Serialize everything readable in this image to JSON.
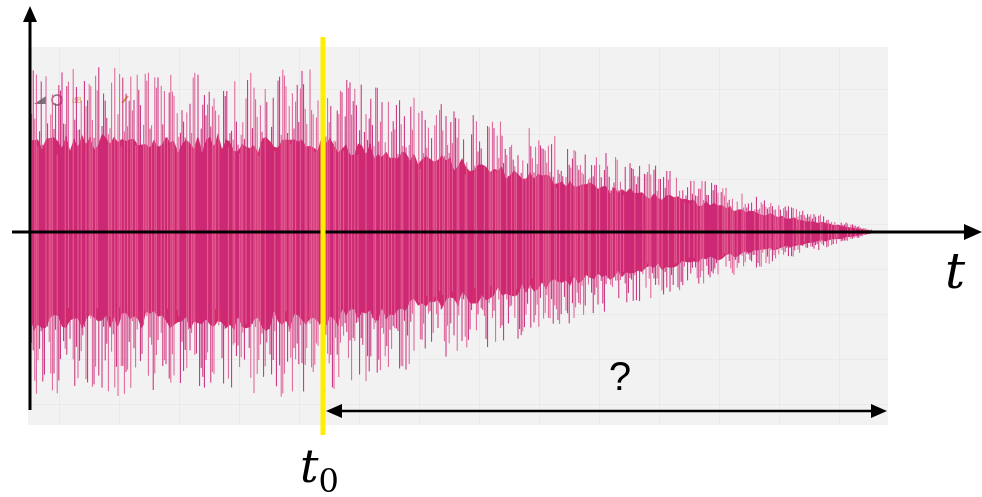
{
  "toolbar": {
    "label": "dB"
  },
  "axis": {
    "t_label": "t"
  },
  "marker": {
    "base": "t",
    "sub": "0"
  },
  "duration": {
    "label": "?"
  }
}
